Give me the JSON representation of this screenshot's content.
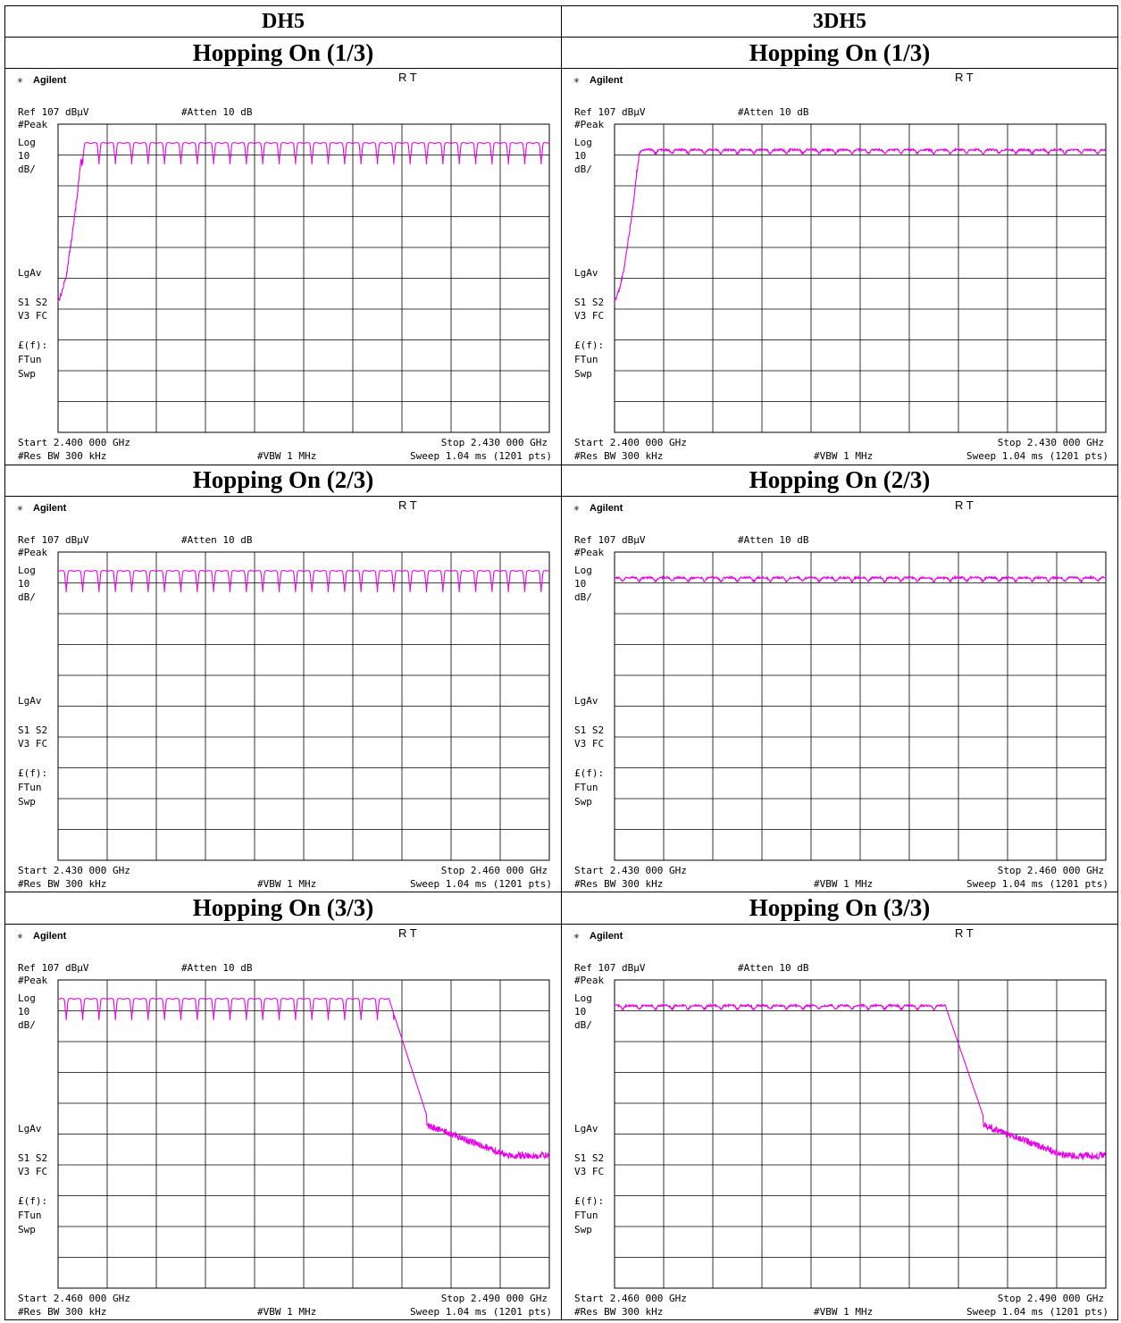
{
  "header": {
    "col_left": "DH5",
    "col_right": "3DH5"
  },
  "rows": [
    {
      "title_left": "Hopping On (1/3)",
      "title_right": "Hopping On (1/3)"
    },
    {
      "title_left": "Hopping On (2/3)",
      "title_right": "Hopping On (2/3)"
    },
    {
      "title_left": "Hopping On (3/3)",
      "title_right": "Hopping On (3/3)"
    }
  ],
  "analyzer": {
    "brand": "Agilent",
    "mode": "R T",
    "ref": "Ref 107 dBµV",
    "atten": "#Atten 10 dB",
    "peak": "#Peak",
    "log": "Log",
    "scale_val": "10",
    "scale_unit": "dB/",
    "lgav": "LgAv",
    "s1s2": "S1  S2",
    "v3fc": "V3  FC",
    "ffun": "£(f):",
    "ftun": "FTun",
    "swp": "Swp",
    "rbw": "#Res BW 300 kHz",
    "vbw": "#VBW 1 MHz",
    "sweep": "Sweep 1.04 ms (1201 pts)",
    "trace_color": "#e600e6",
    "grid_color": "#000000"
  },
  "chart_data": [
    {
      "type": "line",
      "packet": "DH5",
      "segment": "1/3",
      "start": "Start 2.400 000 GHz",
      "stop": "Stop 2.430 000 GHz",
      "xlim": [
        2.4,
        2.43
      ],
      "ylim": [
        7,
        107
      ],
      "yunit": "dBµV",
      "series": [
        {
          "pattern": "comb",
          "channels": 29,
          "first_channel_ghz": 2.402,
          "spacing_mhz": 1,
          "peak_dbuv": 101,
          "dip_dbuv": 94,
          "band_edge_ghz": 2.4015,
          "floor_dbuv": 50
        }
      ]
    },
    {
      "type": "line",
      "packet": "3DH5",
      "segment": "1/3",
      "start": "Start 2.400 000 GHz",
      "stop": "Stop 2.430 000 GHz",
      "xlim": [
        2.4,
        2.43
      ],
      "ylim": [
        7,
        107
      ],
      "yunit": "dBµV",
      "series": [
        {
          "pattern": "flat",
          "channels": 29,
          "first_channel_ghz": 2.402,
          "spacing_mhz": 1,
          "peak_dbuv": 98.7,
          "dip_dbuv": 97.5,
          "band_edge_ghz": 2.4015,
          "floor_dbuv": 50
        }
      ]
    },
    {
      "type": "line",
      "packet": "DH5",
      "segment": "2/3",
      "start": "Start 2.430 000 GHz",
      "stop": "Stop 2.460 000 GHz",
      "xlim": [
        2.43,
        2.46
      ],
      "ylim": [
        7,
        107
      ],
      "yunit": "dBµV",
      "series": [
        {
          "pattern": "comb",
          "channels": 30,
          "first_channel_ghz": 2.43,
          "spacing_mhz": 1,
          "peak_dbuv": 101,
          "dip_dbuv": 94
        }
      ]
    },
    {
      "type": "line",
      "packet": "3DH5",
      "segment": "2/3",
      "start": "Start 2.430 000 GHz",
      "stop": "Stop 2.460 000 GHz",
      "xlim": [
        2.43,
        2.46
      ],
      "ylim": [
        7,
        107
      ],
      "yunit": "dBµV",
      "series": [
        {
          "pattern": "flat",
          "channels": 30,
          "first_channel_ghz": 2.43,
          "spacing_mhz": 1,
          "peak_dbuv": 98.7,
          "dip_dbuv": 97.5
        }
      ]
    },
    {
      "type": "line",
      "packet": "DH5",
      "segment": "3/3",
      "start": "Start 2.460 000 GHz",
      "stop": "Stop 2.490 000 GHz",
      "xlim": [
        2.46,
        2.49
      ],
      "ylim": [
        7,
        107
      ],
      "yunit": "dBµV",
      "series": [
        {
          "pattern": "comb",
          "channels": 21,
          "first_channel_ghz": 2.46,
          "spacing_mhz": 1,
          "peak_dbuv": 101,
          "dip_dbuv": 94,
          "band_edge_ghz": 2.4805,
          "floor_dbuv": 50
        }
      ]
    },
    {
      "type": "line",
      "packet": "3DH5",
      "segment": "3/3",
      "start": "Start 2.460 000 GHz",
      "stop": "Stop 2.490 000 GHz",
      "xlim": [
        2.46,
        2.49
      ],
      "ylim": [
        7,
        107
      ],
      "yunit": "dBµV",
      "series": [
        {
          "pattern": "flat",
          "channels": 21,
          "first_channel_ghz": 2.46,
          "spacing_mhz": 1,
          "peak_dbuv": 98.7,
          "dip_dbuv": 97.5,
          "band_edge_ghz": 2.4805,
          "floor_dbuv": 50
        }
      ]
    }
  ]
}
